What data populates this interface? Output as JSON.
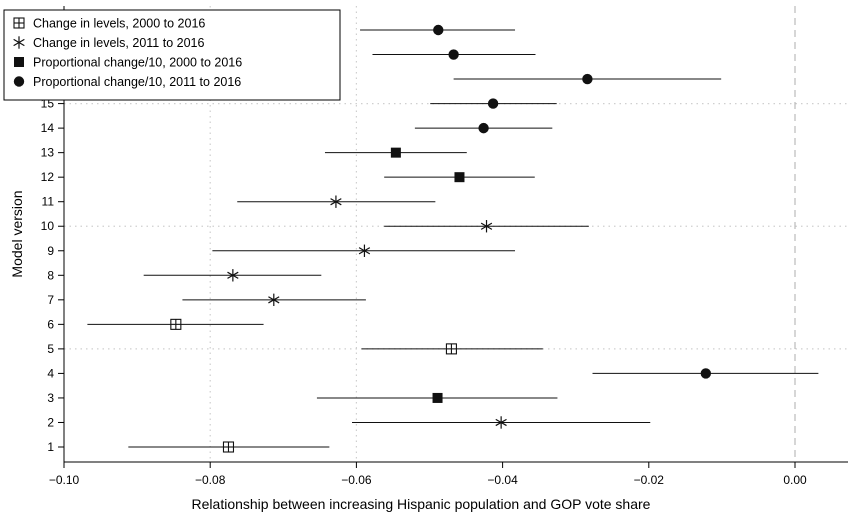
{
  "chart_data": {
    "type": "scatter",
    "subtype": "coefficient-plot with horizontal confidence intervals",
    "xlabel": "Relationship between increasing Hispanic population and GOP vote share",
    "ylabel": "Model version",
    "xlim": [
      -0.1,
      0.003
    ],
    "ylim": [
      0.4,
      18.5
    ],
    "xticks": [
      -0.1,
      -0.08,
      -0.06,
      -0.04,
      -0.02,
      0.0
    ],
    "xtick_labels": [
      "−0.10",
      "−0.08",
      "−0.06",
      "−0.04",
      "−0.02",
      "0.00"
    ],
    "yticks": [
      1,
      2,
      3,
      4,
      5,
      6,
      7,
      8,
      9,
      10,
      11,
      12,
      13,
      14,
      15,
      16,
      17,
      18
    ],
    "ytick_labels": [
      "1",
      "2",
      "3",
      "4",
      "5",
      "6",
      "7",
      "8",
      "9",
      "10",
      "11",
      "12",
      "13",
      "14",
      "15",
      "16",
      "17",
      "18"
    ],
    "grid": "dotted at x = -0.08, -0.06 and y = 5, 10, 15",
    "reference_line": {
      "x": 0.0,
      "style": "dashed",
      "color": "#bbbbbb"
    },
    "legend_position": "top-left",
    "series": [
      {
        "name": "Change in levels, 2000 to 2016",
        "marker": "boxed-plus",
        "points": [
          {
            "model": 1,
            "estimate": -0.0775,
            "ci_low": -0.0912,
            "ci_high": -0.0637
          },
          {
            "model": 5,
            "estimate": -0.047,
            "ci_low": -0.0593,
            "ci_high": -0.0345
          },
          {
            "model": 6,
            "estimate": -0.0847,
            "ci_low": -0.0968,
            "ci_high": -0.0727
          }
        ]
      },
      {
        "name": "Change in levels, 2011 to 2016",
        "marker": "asterisk",
        "points": [
          {
            "model": 2,
            "estimate": -0.0402,
            "ci_low": -0.0606,
            "ci_high": -0.0198
          },
          {
            "model": 7,
            "estimate": -0.0713,
            "ci_low": -0.0838,
            "ci_high": -0.0587
          },
          {
            "model": 8,
            "estimate": -0.0769,
            "ci_low": -0.0891,
            "ci_high": -0.0648
          },
          {
            "model": 9,
            "estimate": -0.0589,
            "ci_low": -0.0797,
            "ci_high": -0.0383
          },
          {
            "model": 10,
            "estimate": -0.0422,
            "ci_low": -0.0562,
            "ci_high": -0.0282
          },
          {
            "model": 11,
            "estimate": -0.0628,
            "ci_low": -0.0763,
            "ci_high": -0.0492
          }
        ]
      },
      {
        "name": "Proportional change/10, 2000 to 2016",
        "marker": "filled-square",
        "points": [
          {
            "model": 3,
            "estimate": -0.0489,
            "ci_low": -0.0654,
            "ci_high": -0.0325
          },
          {
            "model": 12,
            "estimate": -0.0459,
            "ci_low": -0.0562,
            "ci_high": -0.0356
          },
          {
            "model": 13,
            "estimate": -0.0546,
            "ci_low": -0.0643,
            "ci_high": -0.0449
          }
        ]
      },
      {
        "name": "Proportional change/10, 2011 to 2016",
        "marker": "filled-circle",
        "points": [
          {
            "model": 4,
            "estimate": -0.0122,
            "ci_low": -0.0277,
            "ci_high": 0.0032
          },
          {
            "model": 14,
            "estimate": -0.0426,
            "ci_low": -0.052,
            "ci_high": -0.0332
          },
          {
            "model": 15,
            "estimate": -0.0413,
            "ci_low": -0.0499,
            "ci_high": -0.0326
          },
          {
            "model": 16,
            "estimate": -0.0284,
            "ci_low": -0.0467,
            "ci_high": -0.0101
          },
          {
            "model": 17,
            "estimate": -0.0467,
            "ci_low": -0.0578,
            "ci_high": -0.0355
          },
          {
            "model": 18,
            "estimate": -0.0488,
            "ci_low": -0.0595,
            "ci_high": -0.0383
          }
        ]
      }
    ]
  }
}
